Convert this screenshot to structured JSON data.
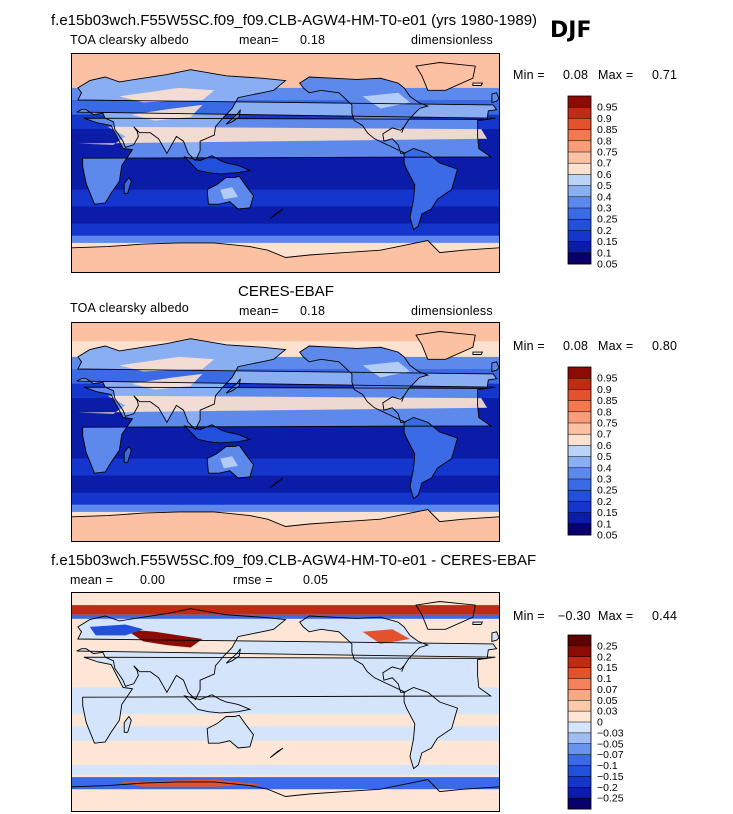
{
  "season": "DJF",
  "panels": [
    {
      "title": "f.e15b03wch.F55W5SC.f09_f09.CLB-AGW4-HM-T0-e01 (yrs 1980-1989)",
      "left_label": "TOA clearsky albedo",
      "mean_label": "mean=",
      "mean_value": "0.18",
      "units": "dimensionless",
      "min_label": "Min =",
      "min_value": "0.08",
      "max_label": "Max =",
      "max_value": "0.71",
      "scheme": "seq"
    },
    {
      "title": "CERES-EBAF",
      "left_label": "TOA clearsky albedo",
      "mean_label": "mean=",
      "mean_value": "0.18",
      "units": "dimensionless",
      "min_label": "Min =",
      "min_value": "0.08",
      "max_label": "Max =",
      "max_value": "0.80",
      "scheme": "seq"
    },
    {
      "title": "f.e15b03wch.F55W5SC.f09_f09.CLB-AGW4-HM-T0-e01 - CERES-EBAF",
      "mean_label": "mean =",
      "mean_value": "0.00",
      "rmse_label": "rmse =",
      "rmse_value": "0.05",
      "min_label": "Min =",
      "min_value": "−0.30",
      "max_label": "Max =",
      "max_value": "0.44",
      "scheme": "div"
    }
  ],
  "chart_data": [
    {
      "type": "heatmap",
      "title": "f.e15b03wch.F55W5SC.f09_f09.CLB-AGW4-HM-T0-e01 (yrs 1980-1989)",
      "field": "TOA clearsky albedo",
      "units": "dimensionless",
      "season": "DJF",
      "mean": 0.18,
      "min": 0.08,
      "max": 0.71,
      "colorbar": [
        "0.05",
        "0.1",
        "0.15",
        "0.2",
        "0.25",
        "0.3",
        "0.4",
        "0.5",
        "0.6",
        "0.7",
        "0.75",
        "0.8",
        "0.85",
        "0.9",
        "0.95"
      ],
      "colors": [
        "#08006b",
        "#0b1ca8",
        "#1436cc",
        "#2150dd",
        "#3b6ae6",
        "#5e89ec",
        "#8aaef2",
        "#bcd3f8",
        "#fde1cf",
        "#fcc1a3",
        "#f99d79",
        "#f5784f",
        "#e3512d",
        "#c02b14",
        "#8c0b04"
      ],
      "x_range": [
        0,
        360
      ],
      "y_range": [
        -90,
        90
      ]
    },
    {
      "type": "heatmap",
      "title": "CERES-EBAF",
      "field": "TOA clearsky albedo",
      "units": "dimensionless",
      "season": "DJF",
      "mean": 0.18,
      "min": 0.08,
      "max": 0.8,
      "colorbar": [
        "0.05",
        "0.1",
        "0.15",
        "0.2",
        "0.25",
        "0.3",
        "0.4",
        "0.5",
        "0.6",
        "0.7",
        "0.75",
        "0.8",
        "0.85",
        "0.9",
        "0.95"
      ],
      "colors": [
        "#08006b",
        "#0b1ca8",
        "#1436cc",
        "#2150dd",
        "#3b6ae6",
        "#5e89ec",
        "#8aaef2",
        "#bcd3f8",
        "#fde1cf",
        "#fcc1a3",
        "#f99d79",
        "#f5784f",
        "#e3512d",
        "#c02b14",
        "#8c0b04"
      ],
      "x_range": [
        0,
        360
      ],
      "y_range": [
        -90,
        90
      ]
    },
    {
      "type": "heatmap",
      "title": "f.e15b03wch.F55W5SC.f09_f09.CLB-AGW4-HM-T0-e01 - CERES-EBAF",
      "season": "DJF",
      "mean": 0.0,
      "rmse": 0.05,
      "min": -0.3,
      "max": 0.44,
      "colorbar": [
        "−0.25",
        "−0.2",
        "−0.15",
        "−0.1",
        "−0.07",
        "−0.05",
        "−0.03",
        "0",
        "0.03",
        "0.05",
        "0.07",
        "0.1",
        "0.15",
        "0.2",
        "0.25"
      ],
      "colors": [
        "#08006b",
        "#0b1ca8",
        "#1436cc",
        "#2150dd",
        "#3b6ae6",
        "#6a93ee",
        "#9fbdf4",
        "#d4e4fa",
        "#fde6d6",
        "#fcc9ac",
        "#f9a785",
        "#f5825a",
        "#e3512d",
        "#c02b14",
        "#8c0b04",
        "#5e0000"
      ],
      "x_range": [
        0,
        360
      ],
      "y_range": [
        -90,
        90
      ]
    }
  ]
}
